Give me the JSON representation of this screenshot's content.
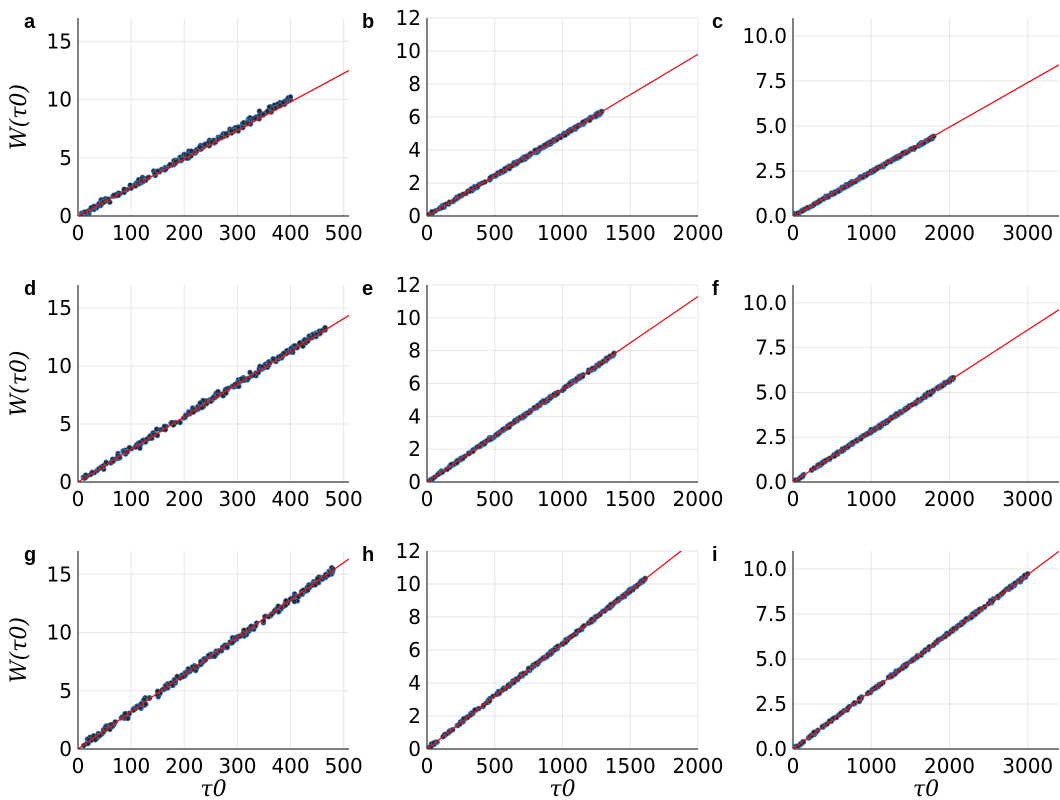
{
  "chart_data": [
    {
      "panel": "a",
      "type": "scatter",
      "ylabel": "W(τ0)",
      "xlabel": "",
      "xlim": [
        0,
        510
      ],
      "ylim": [
        0,
        17
      ],
      "xticks": [
        0,
        100,
        200,
        300,
        400,
        500
      ],
      "yticks": [
        0,
        5,
        10,
        15
      ],
      "x_tick_labels": [
        "0",
        "100",
        "200",
        "300",
        "400",
        "500"
      ],
      "y_tick_labels": [
        "0",
        "5",
        "10",
        "15"
      ],
      "scatter_x_range": [
        5,
        400
      ],
      "scatter_end_y": 10.1,
      "scatter_noise": 0.25,
      "fit_line": {
        "slope": 0.0245,
        "intercept": 0.0
      },
      "grid": true,
      "legend": "none"
    },
    {
      "panel": "b",
      "type": "scatter",
      "ylabel": "",
      "xlabel": "",
      "xlim": [
        0,
        2000
      ],
      "ylim": [
        0,
        12
      ],
      "xticks": [
        0,
        500,
        1000,
        1500,
        2000
      ],
      "yticks": [
        0,
        2,
        4,
        6,
        8,
        10,
        12
      ],
      "x_tick_labels": [
        "0",
        "500",
        "1000",
        "1500",
        "2000"
      ],
      "y_tick_labels": [
        "0",
        "2",
        "4",
        "6",
        "8",
        "10",
        "12"
      ],
      "scatter_x_range": [
        10,
        1290
      ],
      "scatter_end_y": 6.3,
      "scatter_noise": 0.08,
      "fit_line": {
        "slope": 0.0049,
        "intercept": 0.0
      },
      "grid": true,
      "legend": "none"
    },
    {
      "panel": "c",
      "type": "scatter",
      "ylabel": "",
      "xlabel": "",
      "xlim": [
        0,
        3400
      ],
      "ylim": [
        0,
        11
      ],
      "xticks": [
        0,
        1000,
        2000,
        3000
      ],
      "yticks": [
        0,
        2.5,
        5,
        7.5,
        10
      ],
      "x_tick_labels": [
        "0",
        "1000",
        "2000",
        "3000"
      ],
      "y_tick_labels": [
        "0.0",
        "2.5",
        "5.0",
        "7.5",
        "10.0"
      ],
      "scatter_x_range": [
        20,
        1800
      ],
      "scatter_end_y": 4.4,
      "scatter_noise": 0.06,
      "fit_line": {
        "slope": 0.00247,
        "intercept": 0.0
      },
      "grid": true,
      "legend": "none"
    },
    {
      "panel": "d",
      "type": "scatter",
      "ylabel": "W(τ0)",
      "xlabel": "",
      "xlim": [
        0,
        510
      ],
      "ylim": [
        0,
        17
      ],
      "xticks": [
        0,
        100,
        200,
        300,
        400,
        500
      ],
      "yticks": [
        0,
        5,
        10,
        15
      ],
      "x_tick_labels": [
        "0",
        "100",
        "200",
        "300",
        "400",
        "500"
      ],
      "y_tick_labels": [
        "0",
        "5",
        "10",
        "15"
      ],
      "scatter_x_range": [
        5,
        465
      ],
      "scatter_end_y": 13.2,
      "scatter_noise": 0.25,
      "fit_line": {
        "slope": 0.0282,
        "intercept": 0.0
      },
      "grid": true,
      "legend": "none"
    },
    {
      "panel": "e",
      "type": "scatter",
      "ylabel": "",
      "xlabel": "",
      "xlim": [
        0,
        2000
      ],
      "ylim": [
        0,
        12
      ],
      "xticks": [
        0,
        500,
        1000,
        1500,
        2000
      ],
      "yticks": [
        0,
        2,
        4,
        6,
        8,
        10,
        12
      ],
      "x_tick_labels": [
        "0",
        "500",
        "1000",
        "1500",
        "2000"
      ],
      "y_tick_labels": [
        "0",
        "2",
        "4",
        "6",
        "8",
        "10",
        "12"
      ],
      "scatter_x_range": [
        10,
        1380
      ],
      "scatter_end_y": 7.8,
      "scatter_noise": 0.08,
      "fit_line": {
        "slope": 0.00565,
        "intercept": 0.0
      },
      "grid": true,
      "legend": "none"
    },
    {
      "panel": "f",
      "type": "scatter",
      "ylabel": "",
      "xlabel": "",
      "xlim": [
        0,
        3400
      ],
      "ylim": [
        0,
        11
      ],
      "xticks": [
        0,
        1000,
        2000,
        3000
      ],
      "yticks": [
        0,
        2.5,
        5,
        7.5,
        10
      ],
      "x_tick_labels": [
        "0",
        "1000",
        "2000",
        "3000"
      ],
      "y_tick_labels": [
        "0.0",
        "2.5",
        "5.0",
        "7.5",
        "10.0"
      ],
      "scatter_x_range": [
        20,
        2050
      ],
      "scatter_end_y": 5.8,
      "scatter_noise": 0.07,
      "fit_line": {
        "slope": 0.00283,
        "intercept": 0.0
      },
      "grid": true,
      "legend": "none"
    },
    {
      "panel": "g",
      "type": "scatter",
      "ylabel": "W(τ0)",
      "xlabel": "τ0",
      "xlim": [
        0,
        510
      ],
      "ylim": [
        0,
        17
      ],
      "xticks": [
        0,
        100,
        200,
        300,
        400,
        500
      ],
      "yticks": [
        0,
        5,
        10,
        15
      ],
      "x_tick_labels": [
        "0",
        "100",
        "200",
        "300",
        "400",
        "500"
      ],
      "y_tick_labels": [
        "0",
        "5",
        "10",
        "15"
      ],
      "scatter_x_range": [
        5,
        480
      ],
      "scatter_end_y": 15.3,
      "scatter_noise": 0.28,
      "fit_line": {
        "slope": 0.032,
        "intercept": 0.0
      },
      "grid": true,
      "legend": "none"
    },
    {
      "panel": "h",
      "type": "scatter",
      "ylabel": "",
      "xlabel": "τ0",
      "xlim": [
        0,
        2000
      ],
      "ylim": [
        0,
        12
      ],
      "xticks": [
        0,
        500,
        1000,
        1500,
        2000
      ],
      "yticks": [
        0,
        2,
        4,
        6,
        8,
        10,
        12
      ],
      "x_tick_labels": [
        "0",
        "500",
        "1000",
        "1500",
        "2000"
      ],
      "y_tick_labels": [
        "0",
        "2",
        "4",
        "6",
        "8",
        "10",
        "12"
      ],
      "scatter_x_range": [
        10,
        1610
      ],
      "scatter_end_y": 10.3,
      "scatter_noise": 0.08,
      "fit_line": {
        "slope": 0.0064,
        "intercept": 0.0
      },
      "grid": true,
      "legend": "none"
    },
    {
      "panel": "i",
      "type": "scatter",
      "ylabel": "",
      "xlabel": "τ0",
      "xlim": [
        0,
        3400
      ],
      "ylim": [
        0,
        11
      ],
      "xticks": [
        0,
        1000,
        2000,
        3000
      ],
      "yticks": [
        0,
        2.5,
        5,
        7.5,
        10
      ],
      "x_tick_labels": [
        "0",
        "1000",
        "2000",
        "3000"
      ],
      "y_tick_labels": [
        "0.0",
        "2.5",
        "5.0",
        "7.5",
        "10.0"
      ],
      "scatter_x_range": [
        20,
        3000
      ],
      "scatter_end_y": 9.7,
      "scatter_noise": 0.07,
      "fit_line": {
        "slope": 0.00323,
        "intercept": 0.0
      },
      "grid": true,
      "legend": "none"
    }
  ],
  "colors": {
    "marker_fill": "#2b2b2b",
    "marker_edge": "#3a78c2",
    "fit_line": "#e8101a",
    "grid": "#e6e6e6",
    "axis": "#000000"
  }
}
